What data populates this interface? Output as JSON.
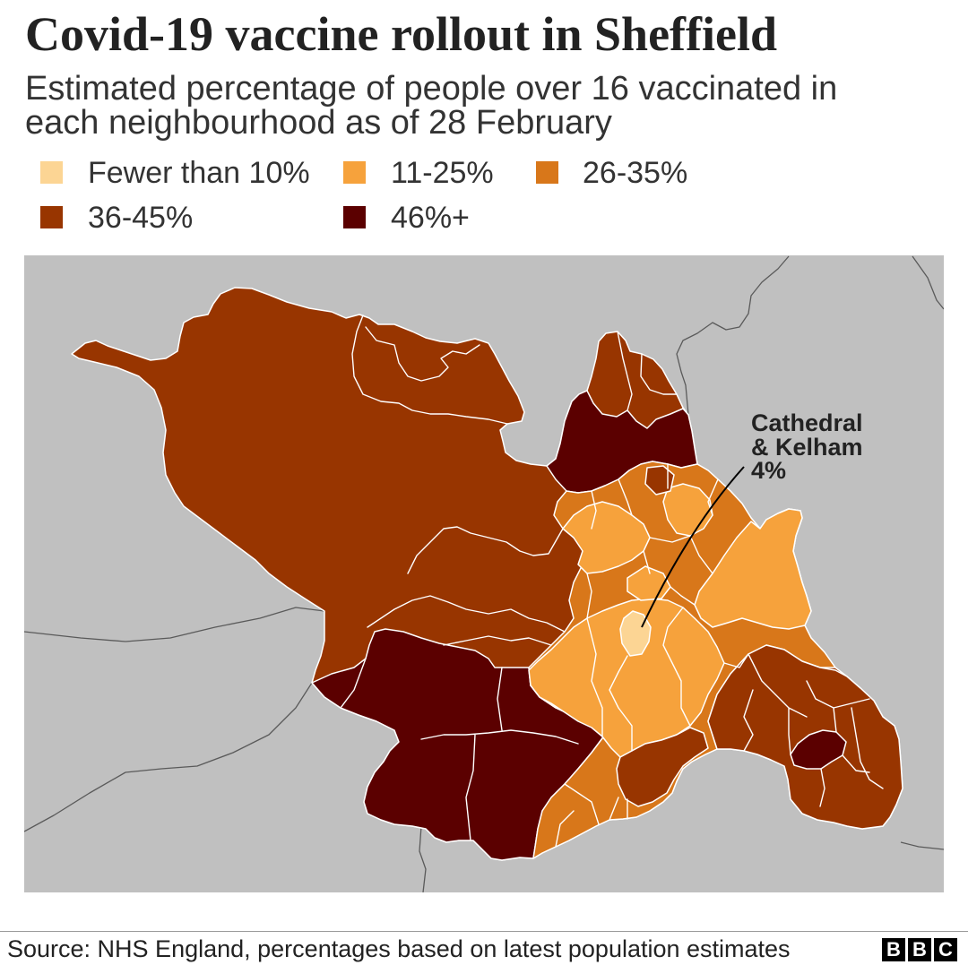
{
  "title": "Covid-19 vaccine rollout in Sheffield",
  "subtitle": {
    "line1": "Estimated percentage of people over 16 vaccinated in",
    "line2": "each neighbourhood as of 28 February"
  },
  "legend": [
    {
      "label": "Fewer than 10%",
      "color": "#fcd594"
    },
    {
      "label": "11-25%",
      "color": "#f6a23c"
    },
    {
      "label": "26-35%",
      "color": "#d8771a"
    },
    {
      "label": "36-45%",
      "color": "#983500"
    },
    {
      "label": "46%+",
      "color": "#5b0000"
    }
  ],
  "annotation": {
    "line1": "Cathedral",
    "line2": "& Kelham",
    "value": "4%"
  },
  "source": "Source: NHS England, percentages based on latest population estimates",
  "logo": {
    "letters": [
      "B",
      "B",
      "C"
    ]
  },
  "colors": {
    "surrounding_land": "#c0c0c0",
    "neighbourhood_border": "#ffffff",
    "other_boundaries": "#5a5a5a",
    "pointer": "#000000"
  }
}
